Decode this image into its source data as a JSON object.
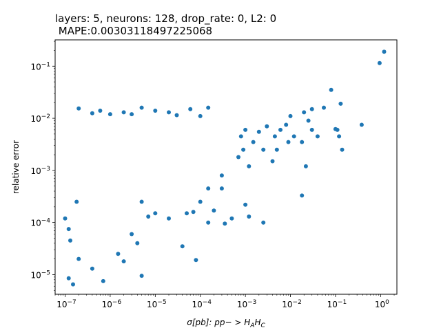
{
  "chart_data": {
    "type": "scatter",
    "title_line1": "layers: 5, neurons: 128, drop_rate: 0, L2: 0",
    "title_line2": " MAPE:0.00303118497225068",
    "xlabel_base": "σ[pb]: pp− > H",
    "xlabel_sub1": "A",
    "xlabel_mid": "H",
    "xlabel_sub2": "C",
    "ylabel": "relative error",
    "xscale": "log",
    "yscale": "log",
    "xlim": [
      6e-08,
      2.3
    ],
    "ylim": [
      4.2e-06,
      0.32
    ],
    "grid": false,
    "marker_color": "#1f77b4",
    "x_ticks": [
      {
        "value": 1e-07,
        "base": "10",
        "exp": "−7"
      },
      {
        "value": 1e-06,
        "base": "10",
        "exp": "−6"
      },
      {
        "value": 1e-05,
        "base": "10",
        "exp": "−5"
      },
      {
        "value": 0.0001,
        "base": "10",
        "exp": "−4"
      },
      {
        "value": 0.001,
        "base": "10",
        "exp": "−3"
      },
      {
        "value": 0.01,
        "base": "10",
        "exp": "−2"
      },
      {
        "value": 0.1,
        "base": "10",
        "exp": "−1"
      },
      {
        "value": 1,
        "base": "10",
        "exp": "0"
      }
    ],
    "y_ticks": [
      {
        "value": 1e-05,
        "base": "10",
        "exp": "−5"
      },
      {
        "value": 0.0001,
        "base": "10",
        "exp": "−4"
      },
      {
        "value": 0.001,
        "base": "10",
        "exp": "−3"
      },
      {
        "value": 0.01,
        "base": "10",
        "exp": "−2"
      },
      {
        "value": 0.1,
        "base": "10",
        "exp": "−1"
      }
    ],
    "points": [
      [
        1.2,
        0.19
      ],
      [
        0.95,
        0.115
      ],
      [
        0.38,
        0.0075
      ],
      [
        0.13,
        0.019
      ],
      [
        0.08,
        0.035
      ],
      [
        0.11,
        0.006
      ],
      [
        0.12,
        0.0045
      ],
      [
        0.14,
        0.0025
      ],
      [
        0.1,
        0.0062
      ],
      [
        0.03,
        0.015
      ],
      [
        0.055,
        0.016
      ],
      [
        0.02,
        0.013
      ],
      [
        0.025,
        0.009
      ],
      [
        0.03,
        0.006
      ],
      [
        0.04,
        0.0045
      ],
      [
        0.018,
        0.0035
      ],
      [
        0.022,
        0.0012
      ],
      [
        0.018,
        0.00033
      ],
      [
        0.01,
        0.011
      ],
      [
        0.012,
        0.0045
      ],
      [
        0.008,
        0.0075
      ],
      [
        0.009,
        0.0035
      ],
      [
        0.006,
        0.006
      ],
      [
        0.005,
        0.0025
      ],
      [
        0.0045,
        0.0045
      ],
      [
        0.004,
        0.0015
      ],
      [
        0.003,
        0.007
      ],
      [
        0.0025,
        0.0025
      ],
      [
        0.002,
        0.0055
      ],
      [
        0.0015,
        0.0035
      ],
      [
        0.0012,
        0.0012
      ],
      [
        0.001,
        0.006
      ],
      [
        0.0009,
        0.0025
      ],
      [
        0.0008,
        0.0045
      ],
      [
        0.0007,
        0.0018
      ],
      [
        0.0025,
        0.0001
      ],
      [
        0.001,
        0.00022
      ],
      [
        0.0012,
        0.00013
      ],
      [
        0.0005,
        0.00012
      ],
      [
        0.0003,
        0.00045
      ],
      [
        0.0002,
        0.00017
      ],
      [
        0.00035,
        9.5e-05
      ],
      [
        0.00015,
        0.0001
      ],
      [
        0.0003,
        0.0008
      ],
      [
        0.00015,
        0.00045
      ],
      [
        0.0001,
        0.00025
      ],
      [
        7e-05,
        0.00016
      ],
      [
        5e-05,
        0.00015
      ],
      [
        4e-05,
        3.5e-05
      ],
      [
        8e-05,
        1.9e-05
      ],
      [
        0.00015,
        0.016
      ],
      [
        0.0001,
        0.011
      ],
      [
        6e-05,
        0.015
      ],
      [
        3e-05,
        0.0115
      ],
      [
        2e-05,
        0.013
      ],
      [
        1e-05,
        0.014
      ],
      [
        5e-06,
        0.016
      ],
      [
        3e-06,
        0.012
      ],
      [
        2e-06,
        0.013
      ],
      [
        1e-06,
        0.012
      ],
      [
        6e-07,
        0.014
      ],
      [
        4e-07,
        0.0125
      ],
      [
        2e-07,
        0.0155
      ],
      [
        1e-05,
        0.00015
      ],
      [
        2e-05,
        0.00012
      ],
      [
        5e-06,
        0.00025
      ],
      [
        7e-06,
        0.00013
      ],
      [
        4e-06,
        4e-05
      ],
      [
        5e-06,
        9.5e-06
      ],
      [
        2e-06,
        1.8e-05
      ],
      [
        1.5e-06,
        2.5e-05
      ],
      [
        3e-06,
        6e-05
      ],
      [
        7e-07,
        7.5e-06
      ],
      [
        4e-07,
        1.3e-05
      ],
      [
        2e-07,
        2e-05
      ],
      [
        1.2e-07,
        8.5e-06
      ],
      [
        1.5e-07,
        6.5e-06
      ],
      [
        1.3e-07,
        4.5e-05
      ],
      [
        1.2e-07,
        7.5e-05
      ],
      [
        1e-07,
        0.00012
      ],
      [
        1.8e-07,
        0.00025
      ]
    ]
  }
}
